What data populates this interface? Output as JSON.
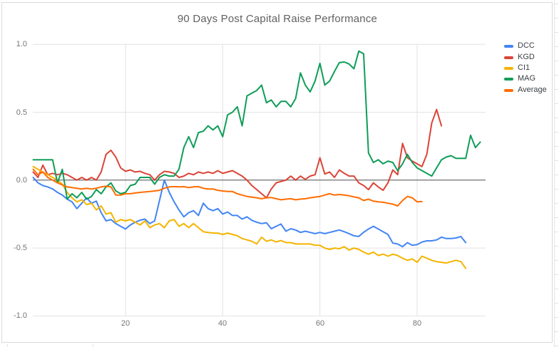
{
  "chart_data": {
    "type": "line",
    "title": "90 Days Post Capital Raise Performance",
    "xlabel": "",
    "ylabel": "",
    "x_tick_labels": [
      "20",
      "40",
      "60",
      "80"
    ],
    "x_tick_values": [
      20,
      40,
      60,
      80
    ],
    "y_tick_labels": [
      "1.0",
      "0.5",
      "0.0",
      "-0.5",
      "-1.0"
    ],
    "y_tick_values": [
      1.0,
      0.5,
      0.0,
      -0.5,
      -1.0
    ],
    "xlim": [
      0,
      94.5
    ],
    "ylim": [
      -1.0,
      1.0
    ],
    "x_start_day": 1,
    "grid": true,
    "legend_position": "right",
    "series": [
      {
        "name": "DCC",
        "color": "#4285F4",
        "values": [
          0.02,
          -0.02,
          -0.04,
          -0.05,
          -0.065,
          -0.09,
          -0.11,
          -0.14,
          -0.16,
          -0.21,
          -0.17,
          -0.13,
          -0.17,
          -0.155,
          -0.24,
          -0.3,
          -0.29,
          -0.32,
          -0.34,
          -0.36,
          -0.33,
          -0.31,
          -0.295,
          -0.287,
          -0.32,
          -0.3,
          -0.15,
          0.0,
          -0.09,
          -0.16,
          -0.22,
          -0.27,
          -0.24,
          -0.225,
          -0.26,
          -0.17,
          -0.21,
          -0.225,
          -0.21,
          -0.25,
          -0.235,
          -0.26,
          -0.26,
          -0.287,
          -0.27,
          -0.296,
          -0.31,
          -0.32,
          -0.314,
          -0.358,
          -0.34,
          -0.323,
          -0.376,
          -0.358,
          -0.367,
          -0.385,
          -0.376,
          -0.385,
          -0.394,
          -0.385,
          -0.394,
          -0.385,
          -0.376,
          -0.367,
          -0.38,
          -0.394,
          -0.41,
          -0.415,
          -0.384,
          -0.36,
          -0.34,
          -0.36,
          -0.38,
          -0.4,
          -0.464,
          -0.47,
          -0.49,
          -0.46,
          -0.48,
          -0.475,
          -0.456,
          -0.447,
          -0.447,
          -0.44,
          -0.42,
          -0.43,
          -0.43,
          -0.426,
          -0.415,
          -0.46
        ]
      },
      {
        "name": "KGD",
        "color": "#DB4437",
        "values": [
          0.06,
          0.02,
          0.11,
          0.04,
          0.05,
          0.04,
          0.05,
          0.04,
          0.02,
          0.0,
          0.02,
          0.0,
          0.02,
          0.0,
          0.06,
          0.19,
          0.22,
          0.17,
          0.09,
          0.065,
          0.075,
          0.06,
          0.065,
          0.05,
          0.04,
          0.0,
          0.04,
          0.065,
          0.06,
          0.05,
          0.02,
          0.03,
          0.05,
          0.04,
          0.06,
          0.05,
          0.06,
          0.05,
          0.07,
          0.05,
          0.06,
          0.07,
          0.05,
          0.03,
          0.0,
          -0.04,
          -0.07,
          -0.1,
          -0.13,
          -0.065,
          -0.02,
          -0.01,
          0.0,
          0.03,
          0.0,
          0.03,
          0.005,
          0.03,
          0.04,
          0.165,
          0.045,
          0.06,
          0.02,
          0.075,
          0.05,
          0.03,
          0.03,
          -0.02,
          -0.04,
          -0.07,
          -0.02,
          -0.05,
          -0.075,
          -0.02,
          0.075,
          0.04,
          0.27,
          0.165,
          0.14,
          0.12,
          0.1,
          0.19,
          0.42,
          0.52,
          0.4
        ]
      },
      {
        "name": "CI1",
        "color": "#F4B400",
        "values": [
          0.1,
          0.08,
          0.06,
          0.04,
          0.02,
          0.0,
          -0.03,
          -0.09,
          -0.13,
          -0.16,
          -0.145,
          -0.18,
          -0.17,
          -0.22,
          -0.19,
          -0.25,
          -0.24,
          -0.31,
          -0.29,
          -0.3,
          -0.29,
          -0.31,
          -0.33,
          -0.3,
          -0.35,
          -0.33,
          -0.32,
          -0.35,
          -0.3,
          -0.29,
          -0.34,
          -0.32,
          -0.35,
          -0.32,
          -0.35,
          -0.38,
          -0.385,
          -0.39,
          -0.39,
          -0.4,
          -0.39,
          -0.4,
          -0.41,
          -0.43,
          -0.44,
          -0.45,
          -0.47,
          -0.42,
          -0.45,
          -0.44,
          -0.455,
          -0.445,
          -0.46,
          -0.46,
          -0.47,
          -0.47,
          -0.47,
          -0.47,
          -0.48,
          -0.48,
          -0.5,
          -0.51,
          -0.5,
          -0.505,
          -0.49,
          -0.515,
          -0.5,
          -0.51,
          -0.53,
          -0.545,
          -0.53,
          -0.555,
          -0.545,
          -0.56,
          -0.545,
          -0.555,
          -0.575,
          -0.59,
          -0.58,
          -0.605,
          -0.56,
          -0.575,
          -0.59,
          -0.6,
          -0.605,
          -0.61,
          -0.6,
          -0.59,
          -0.6,
          -0.65
        ]
      },
      {
        "name": "MAG",
        "color": "#0F9D58",
        "values": [
          0.15,
          0.15,
          0.15,
          0.15,
          0.15,
          -0.02,
          0.08,
          -0.14,
          -0.1,
          -0.13,
          -0.09,
          -0.14,
          -0.12,
          -0.07,
          -0.1,
          -0.05,
          -0.02,
          -0.08,
          -0.1,
          -0.09,
          -0.04,
          -0.03,
          0.02,
          0.02,
          0.02,
          -0.03,
          0.02,
          0.04,
          0.03,
          0.03,
          0.08,
          0.24,
          0.32,
          0.24,
          0.35,
          0.36,
          0.4,
          0.37,
          0.4,
          0.32,
          0.48,
          0.5,
          0.54,
          0.4,
          0.62,
          0.64,
          0.66,
          0.7,
          0.57,
          0.59,
          0.54,
          0.58,
          0.58,
          0.54,
          0.6,
          0.79,
          0.7,
          0.65,
          0.73,
          0.86,
          0.7,
          0.73,
          0.8,
          0.865,
          0.87,
          0.855,
          0.82,
          0.95,
          0.93,
          0.2,
          0.13,
          0.15,
          0.12,
          0.14,
          0.13,
          0.07,
          0.12,
          0.19,
          0.13,
          0.09,
          0.07,
          0.05,
          0.03,
          0.09,
          0.15,
          0.17,
          0.18,
          0.16,
          0.16,
          0.16,
          0.33,
          0.24,
          0.28
        ]
      },
      {
        "name": "Average",
        "color": "#FF6D01",
        "values": [
          0.08,
          0.04,
          0.06,
          0.02,
          0.0,
          -0.02,
          -0.035,
          -0.05,
          -0.055,
          -0.06,
          -0.065,
          -0.06,
          -0.065,
          -0.06,
          -0.05,
          -0.045,
          -0.05,
          -0.11,
          -0.11,
          -0.1,
          -0.1,
          -0.095,
          -0.09,
          -0.087,
          -0.084,
          -0.08,
          -0.075,
          -0.06,
          -0.05,
          -0.048,
          -0.05,
          -0.048,
          -0.055,
          -0.05,
          -0.048,
          -0.06,
          -0.065,
          -0.065,
          -0.075,
          -0.08,
          -0.084,
          -0.084,
          -0.1,
          -0.11,
          -0.12,
          -0.125,
          -0.13,
          -0.137,
          -0.13,
          -0.128,
          -0.137,
          -0.145,
          -0.14,
          -0.137,
          -0.145,
          -0.14,
          -0.137,
          -0.13,
          -0.125,
          -0.12,
          -0.11,
          -0.1,
          -0.11,
          -0.106,
          -0.11,
          -0.115,
          -0.124,
          -0.13,
          -0.15,
          -0.14,
          -0.155,
          -0.16,
          -0.163,
          -0.17,
          -0.177,
          -0.19,
          -0.15,
          -0.12,
          -0.13,
          -0.16,
          -0.158
        ]
      }
    ]
  },
  "colors": {
    "gridline": "#e2e2e2",
    "zero_axis": "#4d4d4d",
    "axis_text": "#757575",
    "title_text": "#616161",
    "legend_text": "#3c4043",
    "border": "#d9d9d9",
    "background": "#ffffff"
  }
}
